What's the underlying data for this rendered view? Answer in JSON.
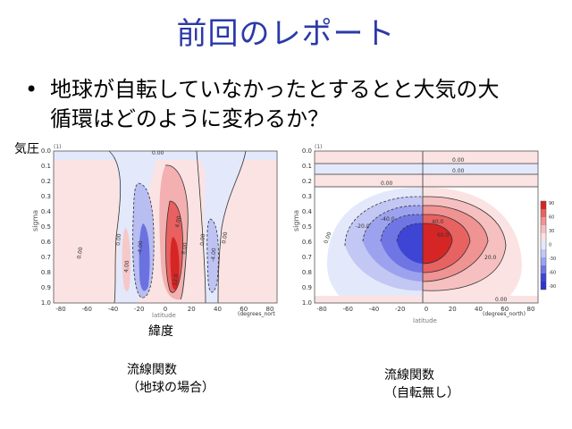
{
  "slide": {
    "title": "前回のレポート",
    "bullet_marker": "•",
    "bullet_line1": "地球が自転していなかったとするとと大気の大",
    "bullet_line2": "循環はどのように変わるか？"
  },
  "left_plot": {
    "pressure_label": "気圧",
    "latitude_label": "緯度",
    "caption_line1": "流線関数",
    "caption_line2": "（地球の場合）",
    "top_right_mark": "1",
    "yaxis_title": "sigma",
    "xaxis_title": "latitude",
    "xunit": "(degrees_nort",
    "top_mark": "(1)",
    "yticks": [
      "0.0",
      "0.1",
      "0.2",
      "0.3",
      "0.4",
      "0.5",
      "0.6",
      "0.7",
      "0.8",
      "0.9",
      "1.0"
    ],
    "xticks": [
      "-80",
      "-60",
      "-40",
      "-20",
      "0",
      "20",
      "40",
      "60",
      "80"
    ],
    "contour_labels": [
      "0.00",
      "0.00",
      "0.00",
      "0.00",
      "0.00",
      "4.00",
      "-4.00",
      "4.00",
      "-4.00",
      "12.0",
      "8.00"
    ]
  },
  "right_plot": {
    "caption_line1": "流線関数",
    "caption_line2": "（自転無し）",
    "yaxis_title": "sigma",
    "xaxis_title": "latitude",
    "xunit": "(degrees_north)",
    "top_mark": "(1)",
    "yticks": [
      "0.0",
      "0.1",
      "0.2",
      "0.3",
      "0.4",
      "0.5",
      "0.6",
      "0.7",
      "0.8",
      "0.9",
      "1.0"
    ],
    "xticks": [
      "-80",
      "-60",
      "-40",
      "-20",
      "0",
      "20",
      "40",
      "60",
      "80"
    ],
    "contour_labels": [
      "0.00",
      "0.00",
      "0.00",
      "-20.0",
      "-40.0",
      "40.0",
      "60.0",
      "20.0",
      "0.00",
      "0.00"
    ],
    "colorbar_ticks": [
      "90",
      "60",
      "30",
      "0",
      "-30",
      "-60",
      "-90"
    ]
  },
  "colors": {
    "title": "#2b3aa8",
    "positive_light": "#fbe3e3",
    "positive": "#ee7777",
    "positive_strong": "#d62525",
    "negative_light": "#e4e8fb",
    "negative": "#7b82e6",
    "negative_strong": "#2f33d0"
  }
}
